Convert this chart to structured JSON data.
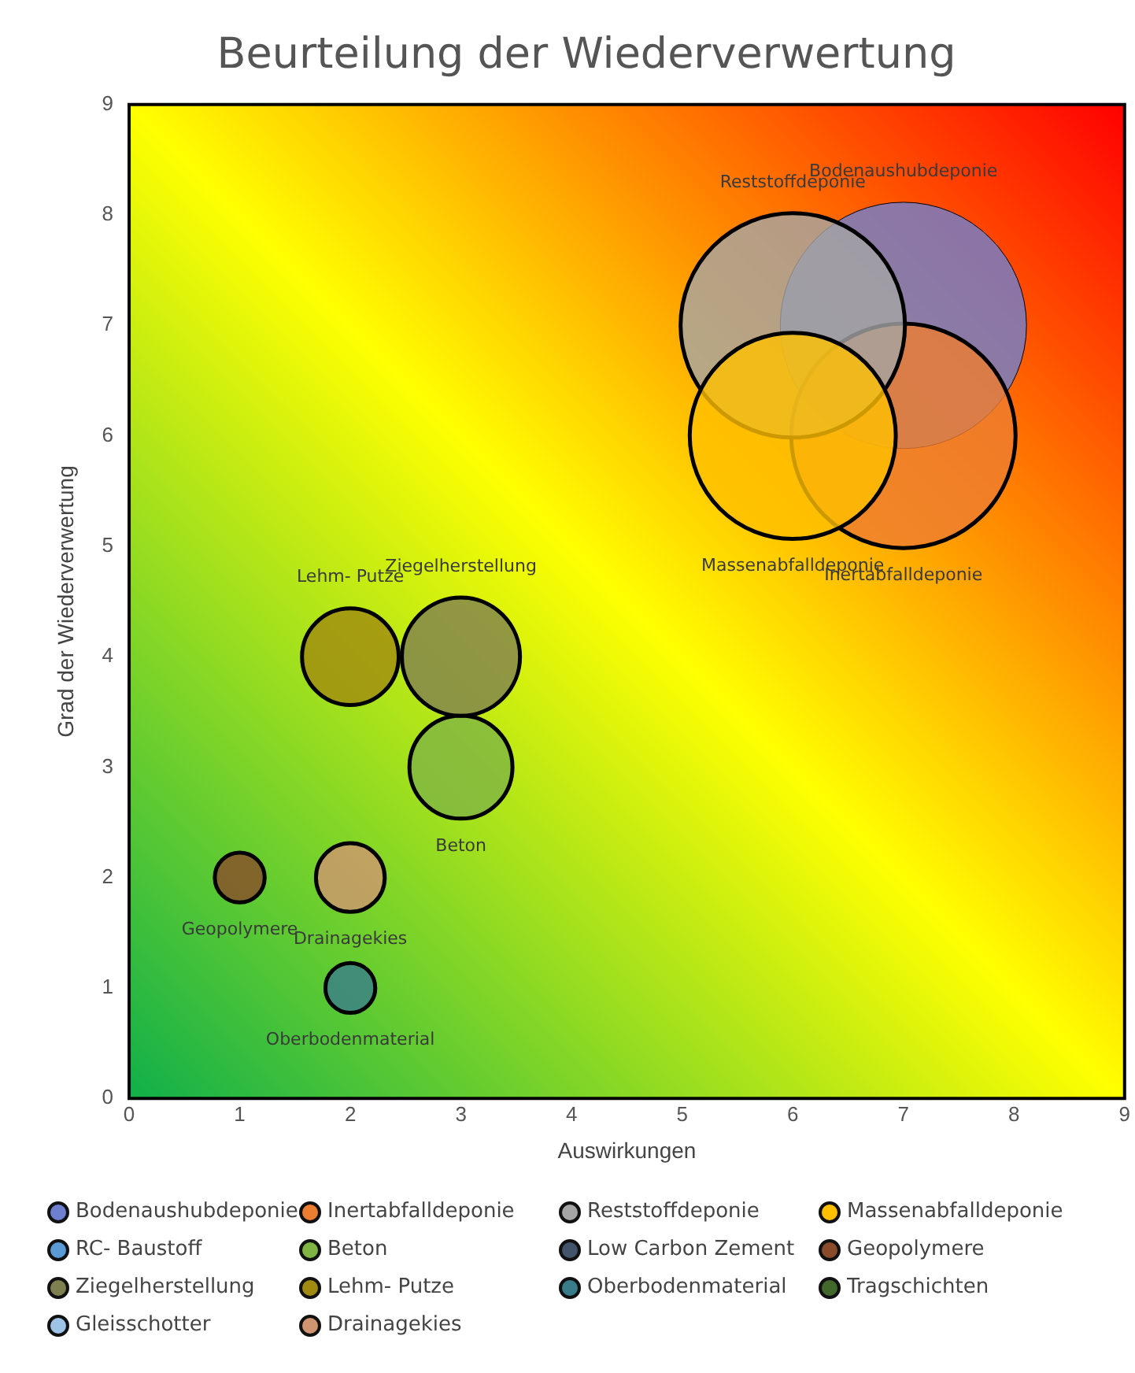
{
  "chart_data": {
    "type": "bubble",
    "title": "Beurteilung der Wiederverwertung",
    "xlabel": "Auswirkungen",
    "ylabel": "Grad der Wiederverwertung",
    "xlim": [
      0,
      9
    ],
    "xticks": [
      0,
      1,
      2,
      3,
      4,
      5,
      6,
      7,
      8,
      9
    ],
    "ylim": [
      0,
      9
    ],
    "yticks": [
      0,
      1,
      2,
      3,
      4,
      5,
      6,
      7,
      8,
      9
    ],
    "grid": false,
    "legend": "bottom",
    "series": [
      {
        "name": "Bodenaushubdeponie",
        "color": "#6f7fcf",
        "x": [
          7
        ],
        "values": [
          7
        ],
        "sizes": [
          1
        ]
      },
      {
        "name": "Inertabfalldeponie",
        "color": "#ed7d31",
        "x": [
          7
        ],
        "values": [
          6
        ],
        "sizes": [
          0.83
        ]
      },
      {
        "name": "Reststoffdeponie",
        "color": "#a5a5a5",
        "x": [
          6
        ],
        "values": [
          7
        ],
        "sizes": [
          0.83
        ]
      },
      {
        "name": "Massenabfalldeponie",
        "color": "#ffc000",
        "x": [
          6
        ],
        "values": [
          6
        ],
        "sizes": [
          0.7
        ]
      },
      {
        "name": "RC- Baustoff",
        "color": "#5b9bd5",
        "x": [
          null
        ],
        "values": [
          null
        ],
        "sizes": [
          null
        ]
      },
      {
        "name": "Beton",
        "color": "#7fb444",
        "x": [
          3
        ],
        "values": [
          3
        ],
        "sizes": [
          0.175
        ]
      },
      {
        "name": "Low Carbon Zement",
        "color": "#44546a",
        "x": [
          null
        ],
        "values": [
          null
        ],
        "sizes": [
          null
        ]
      },
      {
        "name": "Geopolymere",
        "color": "#8a4b2a",
        "x": [
          1
        ],
        "values": [
          2
        ],
        "sizes": [
          0.041
        ]
      },
      {
        "name": "Ziegelherstellung",
        "color": "#7f8050",
        "x": [
          3
        ],
        "values": [
          4
        ],
        "sizes": [
          0.23
        ]
      },
      {
        "name": "Lehm- Putze",
        "color": "#a08a10",
        "x": [
          2
        ],
        "values": [
          4
        ],
        "sizes": [
          0.154
        ]
      },
      {
        "name": "Oberbodenmaterial",
        "color": "#3a7d8a",
        "x": [
          2
        ],
        "values": [
          1
        ],
        "sizes": [
          0.041
        ]
      },
      {
        "name": "Tragschichten",
        "color": "#43682b",
        "x": [
          null
        ],
        "values": [
          null
        ],
        "sizes": [
          null
        ]
      },
      {
        "name": "Gleisschotter",
        "color": "#9dc3e6",
        "x": [
          null
        ],
        "values": [
          null
        ],
        "sizes": [
          null
        ]
      },
      {
        "name": "Drainagekies",
        "color": "#d09570",
        "x": [
          2
        ],
        "values": [
          2
        ],
        "sizes": [
          0.078
        ]
      }
    ]
  }
}
